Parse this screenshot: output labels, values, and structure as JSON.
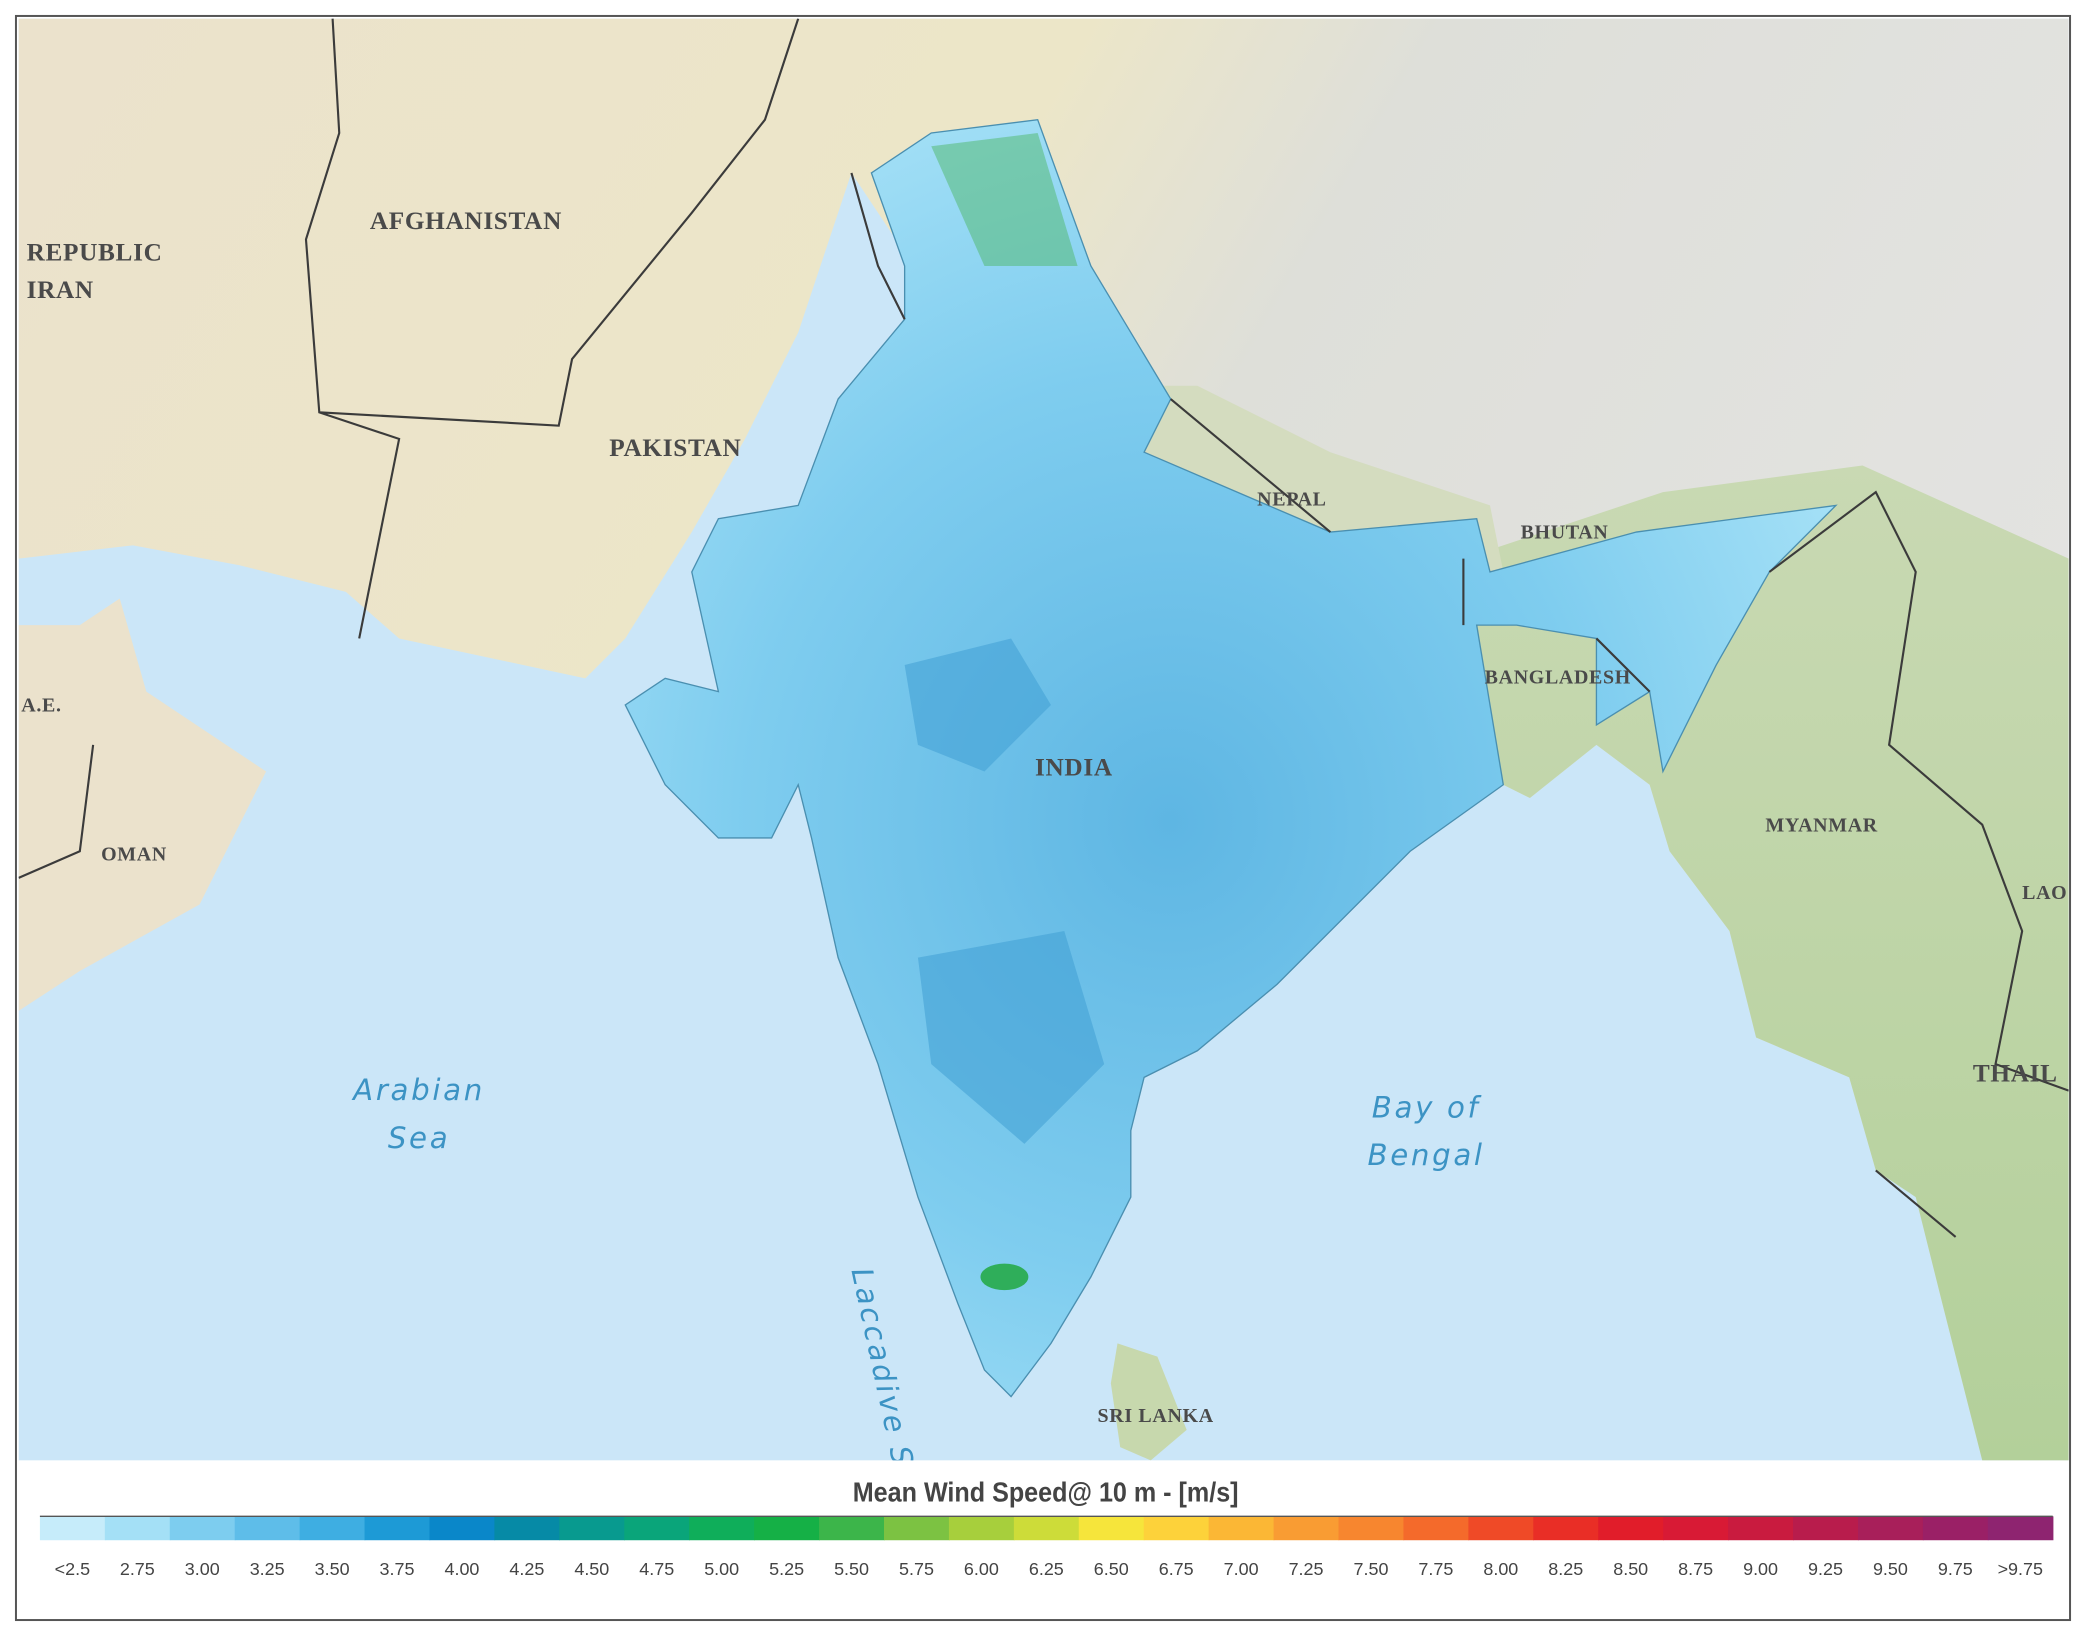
{
  "map_labels": {
    "countries": [
      "REPUBLIC",
      "IRAN",
      "AFGHANISTAN",
      "PAKISTAN",
      "NEPAL",
      "BHUTAN",
      "BANGLADESH",
      "INDIA",
      "MYANMAR",
      "A.E.",
      "OMAN",
      "LAO",
      "THAIL",
      "SRI LANKA"
    ],
    "seas": [
      [
        "Arabian",
        "Sea"
      ],
      [
        "Bay of",
        "Bengal"
      ],
      [
        "Laccadive Sea"
      ]
    ]
  },
  "legend": {
    "title": "Mean Wind Speed@ 10 m - [m/s]",
    "items": [
      {
        "label": "<2.5",
        "color": "#c6ecfa"
      },
      {
        "label": "2.75",
        "color": "#a4e0f6"
      },
      {
        "label": "3.00",
        "color": "#7dcdef"
      },
      {
        "label": "3.25",
        "color": "#5ebde9"
      },
      {
        "label": "3.50",
        "color": "#3eaee2"
      },
      {
        "label": "3.75",
        "color": "#1d9ad6"
      },
      {
        "label": "4.00",
        "color": "#0a87c9"
      },
      {
        "label": "4.25",
        "color": "#068aa6"
      },
      {
        "label": "4.50",
        "color": "#089a8f"
      },
      {
        "label": "4.75",
        "color": "#0aa57a"
      },
      {
        "label": "5.00",
        "color": "#0fae5a"
      },
      {
        "label": "5.25",
        "color": "#15b046"
      },
      {
        "label": "5.50",
        "color": "#3cb54a"
      },
      {
        "label": "5.75",
        "color": "#7cc242"
      },
      {
        "label": "6.00",
        "color": "#a7cf3c"
      },
      {
        "label": "6.25",
        "color": "#cddc39"
      },
      {
        "label": "6.50",
        "color": "#f6e53b"
      },
      {
        "label": "6.75",
        "color": "#fdd23a"
      },
      {
        "label": "7.00",
        "color": "#fbb735"
      },
      {
        "label": "7.25",
        "color": "#f99c33"
      },
      {
        "label": "7.50",
        "color": "#f7862f"
      },
      {
        "label": "7.75",
        "color": "#f46a2b"
      },
      {
        "label": "8.00",
        "color": "#ef4a27"
      },
      {
        "label": "8.25",
        "color": "#e92e26"
      },
      {
        "label": "8.50",
        "color": "#e11d2a"
      },
      {
        "label": "8.75",
        "color": "#d81a35"
      },
      {
        "label": "9.00",
        "color": "#c91b3f"
      },
      {
        "label": "9.25",
        "color": "#b81c4c"
      },
      {
        "label": "9.50",
        "color": "#a81f5a"
      },
      {
        "label": "9.75",
        "color": "#9a2066"
      },
      {
        "label": ">9.75",
        "color": "#8e2470"
      }
    ]
  }
}
